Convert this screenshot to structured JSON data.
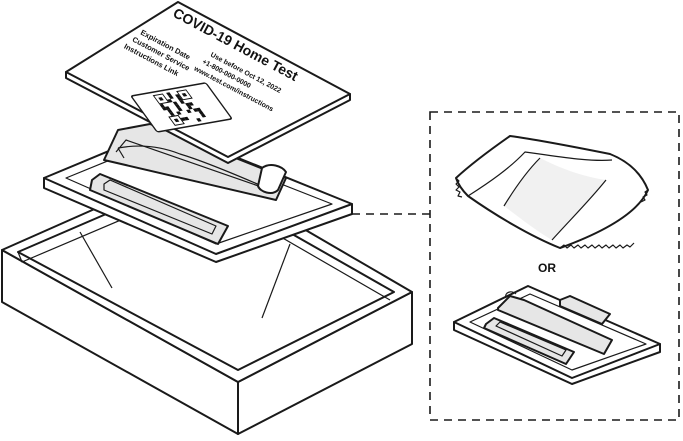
{
  "card": {
    "title": "COVID-19 Home Test",
    "labels": [
      "Expiration Date",
      "Customer Service",
      "Instructions Link"
    ],
    "values": [
      "Use before Oct 12, 2022",
      "+1-800-000-0000",
      "www.test.com/instructions"
    ]
  },
  "alternatives": {
    "separator": "OR"
  }
}
